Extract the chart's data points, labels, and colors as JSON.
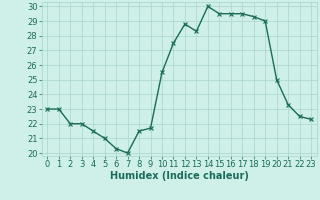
{
  "xlabel": "Humidex (Indice chaleur)",
  "x": [
    0,
    1,
    2,
    3,
    4,
    5,
    6,
    7,
    8,
    9,
    10,
    11,
    12,
    13,
    14,
    15,
    16,
    17,
    18,
    19,
    20,
    21,
    22,
    23
  ],
  "y": [
    23.0,
    23.0,
    22.0,
    22.0,
    21.5,
    21.0,
    20.3,
    20.0,
    21.5,
    21.7,
    25.5,
    27.5,
    28.8,
    28.3,
    30.0,
    29.5,
    29.5,
    29.5,
    29.3,
    29.0,
    25.0,
    23.3,
    22.5,
    22.3
  ],
  "line_color": "#1a6b5a",
  "marker": "x",
  "marker_size": 3,
  "line_width": 1.0,
  "bg_color": "#cff0e8",
  "grid_color": "#a8d5cc",
  "ylim": [
    19.8,
    30.3
  ],
  "xlim": [
    -0.5,
    23.5
  ],
  "yticks": [
    20,
    21,
    22,
    23,
    24,
    25,
    26,
    27,
    28,
    29,
    30
  ],
  "xticks": [
    0,
    1,
    2,
    3,
    4,
    5,
    6,
    7,
    8,
    9,
    10,
    11,
    12,
    13,
    14,
    15,
    16,
    17,
    18,
    19,
    20,
    21,
    22,
    23
  ],
  "tick_fontsize": 6,
  "xlabel_fontsize": 7,
  "label_color": "#1a6b5a"
}
